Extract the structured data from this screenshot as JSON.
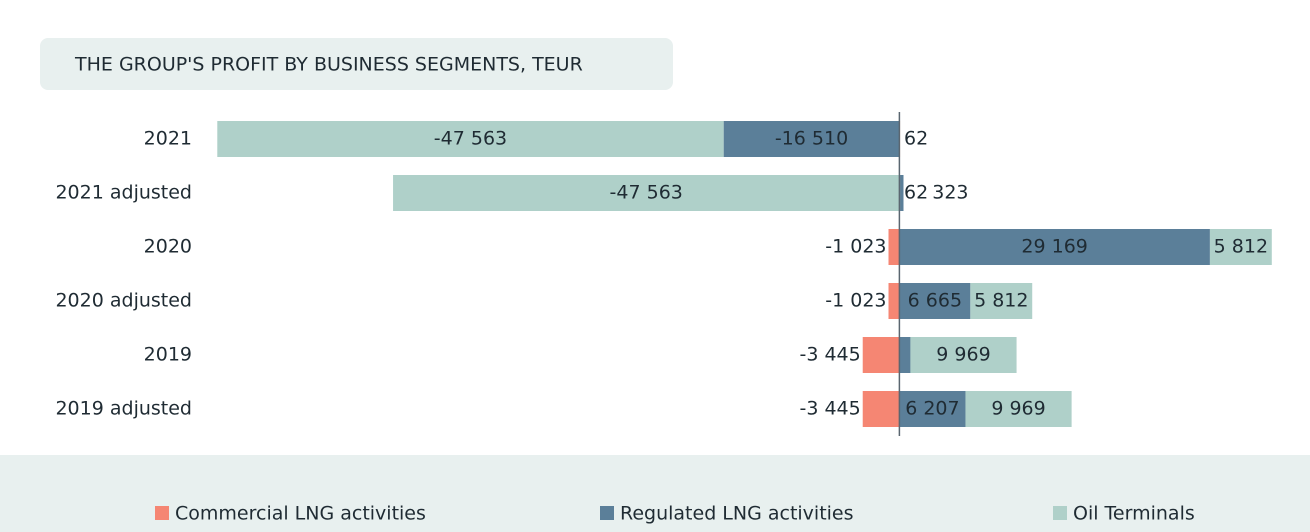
{
  "chart_data": {
    "type": "bar",
    "orientation": "horizontal",
    "stacked": true,
    "title": "THE GROUP'S PROFIT BY BUSINESS SEGMENTS, TEUR",
    "categories": [
      "2021",
      "2021 adjusted",
      "2020",
      "2020 adjusted",
      "2019",
      "2019 adjusted"
    ],
    "series": [
      {
        "name": "Commercial LNG activities",
        "color": "#f58673",
        "values": [
          62,
          62,
          -1023,
          -1023,
          -3445,
          -3445
        ],
        "value_labels": [
          "62",
          "62",
          "-1 023",
          "-1 023",
          "-3 445",
          "-3 445"
        ]
      },
      {
        "name": "Regulated LNG activities",
        "color": "#5b7f99",
        "values": [
          -16510,
          323,
          29169,
          6665,
          1037,
          6207
        ],
        "value_labels": [
          "-16 510",
          "323",
          "29 169",
          "6 665",
          "1 037",
          "6 207"
        ]
      },
      {
        "name": "Oil Terminals",
        "color": "#afd0c9",
        "values": [
          -47563,
          -47563,
          5812,
          5812,
          9969,
          9969
        ],
        "value_labels": [
          "-47 563",
          "-47 563",
          "5 812",
          "5 812",
          "9 969",
          "9 969"
        ]
      }
    ],
    "xlim": [
      -64100,
      35000
    ],
    "legend": "bottom"
  }
}
